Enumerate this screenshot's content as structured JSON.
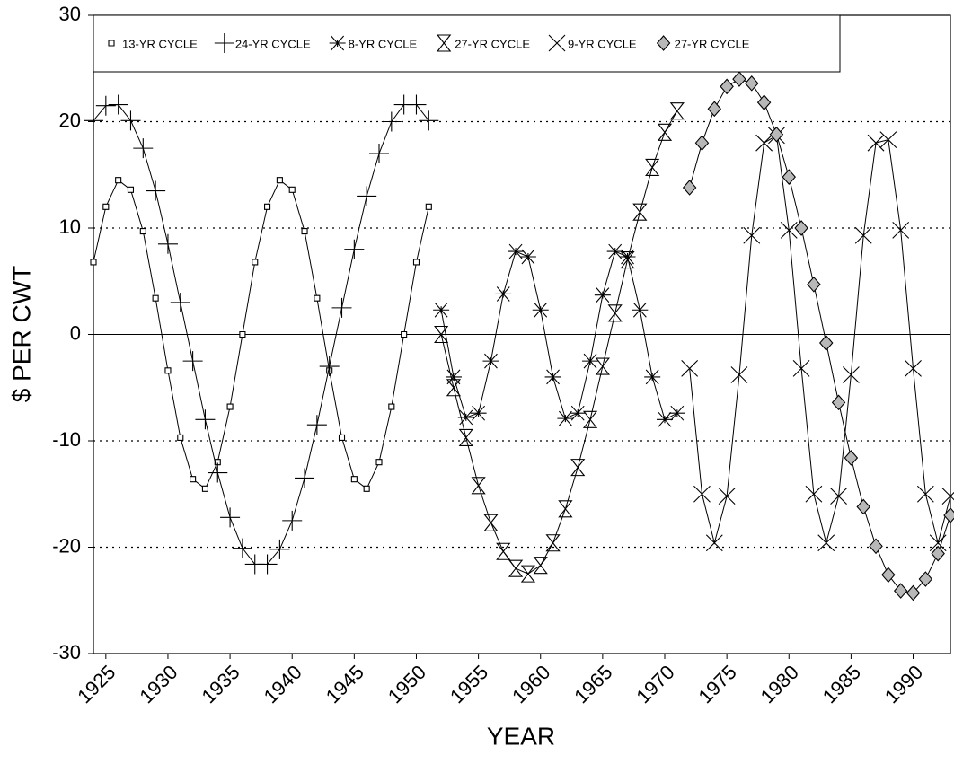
{
  "chart_data": {
    "type": "line",
    "x_label": "YEAR",
    "y_label": "$ PER CWT",
    "xlim": [
      1924,
      1993
    ],
    "ylim": [
      -30,
      30
    ],
    "xticks": [
      1925,
      1930,
      1935,
      1940,
      1945,
      1950,
      1955,
      1960,
      1965,
      1970,
      1975,
      1980,
      1985,
      1990
    ],
    "yticks": [
      -30,
      -20,
      -10,
      0,
      10,
      20,
      30
    ],
    "grid": true,
    "legend": "top-left",
    "series": [
      {
        "name": "13-YR CYCLE",
        "color": "#000000",
        "marker": "square",
        "x": [
          1924,
          1925,
          1926,
          1927,
          1928,
          1929,
          1930,
          1931,
          1932,
          1933,
          1934,
          1935,
          1936,
          1937,
          1938,
          1939,
          1940,
          1941,
          1942,
          1943,
          1944,
          1945,
          1946,
          1947,
          1948,
          1949,
          1950,
          1951
        ],
        "values": [
          6.8,
          12,
          14.5,
          13.6,
          9.7,
          3.4,
          -3.4,
          -9.7,
          -13.6,
          -14.5,
          -12,
          -6.8,
          0,
          6.8,
          12,
          14.5,
          13.6,
          9.7,
          3.4,
          -3.4,
          -9.7,
          -13.6,
          -14.5,
          -12,
          -6.8,
          0,
          6.8,
          12
        ]
      },
      {
        "name": "24-YR CYCLE",
        "color": "#000000",
        "marker": "plus",
        "x": [
          1924,
          1925,
          1926,
          1927,
          1928,
          1929,
          1930,
          1931,
          1932,
          1933,
          1934,
          1935,
          1936,
          1937,
          1938,
          1939,
          1940,
          1941,
          1942,
          1943,
          1944,
          1945,
          1946,
          1947,
          1948,
          1949,
          1950,
          1951
        ],
        "values": [
          20.1,
          21.5,
          21.6,
          20.1,
          17.5,
          13.5,
          8.5,
          3,
          -2.5,
          -8,
          -13,
          -17.2,
          -20.1,
          -21.6,
          -21.6,
          -20.2,
          -17.5,
          -13.5,
          -8.5,
          -3,
          2.5,
          8,
          13,
          17,
          20,
          21.6,
          21.6,
          20.1
        ]
      },
      {
        "name": "8-YR CYCLE",
        "color": "#000000",
        "marker": "asterisk",
        "x": [
          1952,
          1953,
          1954,
          1955,
          1956,
          1957,
          1958,
          1959,
          1960,
          1961,
          1962,
          1963,
          1964,
          1965,
          1966,
          1967,
          1968,
          1969,
          1970,
          1971
        ],
        "values": [
          2.3,
          -4,
          -7.8,
          -7.4,
          -2.5,
          3.8,
          7.8,
          7.3,
          2.3,
          -4,
          -7.9,
          -7.4,
          -2.5,
          3.7,
          7.8,
          7.3,
          2.3,
          -4,
          -8,
          -7.4
        ]
      },
      {
        "name": "27-YR CYCLE",
        "color": "#000000",
        "marker": "hourglass",
        "x": [
          1952,
          1953,
          1954,
          1955,
          1956,
          1957,
          1958,
          1959,
          1960,
          1961,
          1962,
          1963,
          1964,
          1965,
          1966,
          1967,
          1968,
          1969,
          1970,
          1971
        ],
        "values": [
          0,
          -5,
          -9.7,
          -14.2,
          -17.7,
          -20.4,
          -22,
          -22.5,
          -21.7,
          -19.6,
          -16.4,
          -12.5,
          -8,
          -3,
          2,
          7,
          11.5,
          15.7,
          19,
          21
        ]
      },
      {
        "name": "9-YR CYCLE",
        "color": "#000000",
        "marker": "x",
        "x": [
          1972,
          1973,
          1974,
          1975,
          1976,
          1977,
          1978,
          1979,
          1980,
          1981,
          1982,
          1983,
          1984,
          1985,
          1986,
          1987,
          1988,
          1989,
          1990,
          1991,
          1992,
          1993
        ],
        "values": [
          -3.2,
          -15,
          -19.6,
          -15.2,
          -3.8,
          9.3,
          18,
          18.7,
          9.8,
          -3.2,
          -15,
          -19.6,
          -15.2,
          -3.8,
          9.3,
          18,
          18.3,
          9.8,
          -3.2,
          -15,
          -19.6,
          -15.2
        ]
      },
      {
        "name": "27-YR CYCLE",
        "color": "#000000",
        "marker": "diamond",
        "x": [
          1972,
          1973,
          1974,
          1975,
          1976,
          1977,
          1978,
          1979,
          1980,
          1981,
          1982,
          1983,
          1984,
          1985,
          1986,
          1987,
          1988,
          1989,
          1990,
          1991,
          1992,
          1993
        ],
        "values": [
          13.8,
          18,
          21.2,
          23.3,
          24,
          23.6,
          21.8,
          18.8,
          14.8,
          10,
          4.7,
          -0.8,
          -6.4,
          -11.6,
          -16.2,
          -19.9,
          -22.6,
          -24.1,
          -24.3,
          -23,
          -20.6,
          -17
        ]
      }
    ]
  }
}
